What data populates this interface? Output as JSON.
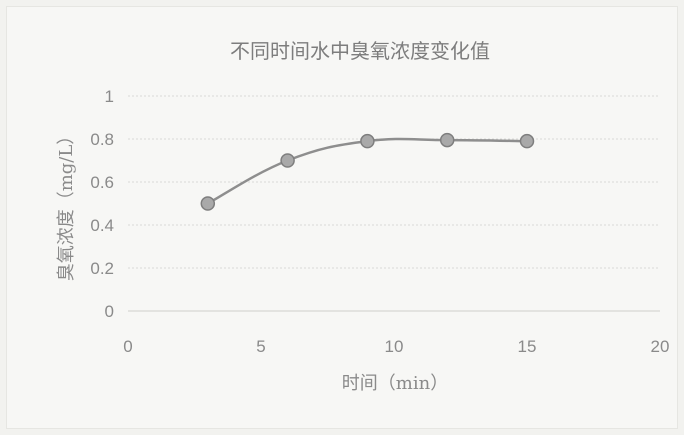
{
  "chart_data": {
    "type": "scatter",
    "title": "不同时间水中臭氧浓度变化值",
    "xlabel": "时间（min）",
    "ylabel": "臭氧浓度（mg/L）",
    "x_ticks": [
      "0",
      "5",
      "10",
      "15",
      "20"
    ],
    "y_ticks": [
      "0",
      "0.2",
      "0.4",
      "0.6",
      "0.8",
      "1"
    ],
    "xlim": [
      0,
      20
    ],
    "ylim": [
      0,
      1
    ],
    "grid": true,
    "legend": "none",
    "series": [
      {
        "x": [
          3,
          6,
          9,
          12,
          15
        ],
        "y": [
          0.5,
          0.7,
          0.79,
          0.795,
          0.79
        ],
        "color": "#8e8e8e",
        "smooth": true
      }
    ]
  }
}
